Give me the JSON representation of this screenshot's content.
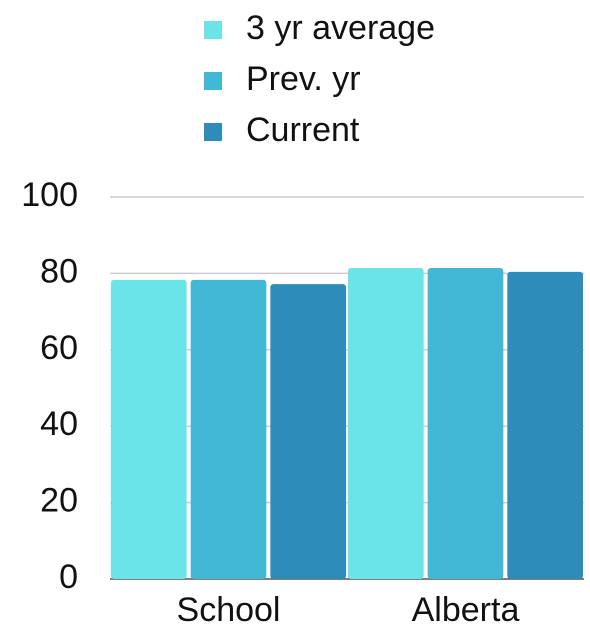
{
  "chart_data": {
    "type": "bar",
    "categories": [
      "School",
      "Alberta"
    ],
    "series": [
      {
        "name": "3 yr average",
        "color": "#6ae4e9",
        "values": [
          78.3,
          81.4
        ]
      },
      {
        "name": "Prev. yr",
        "color": "#42b8d6",
        "values": [
          78.3,
          81.4
        ]
      },
      {
        "name": "Current",
        "color": "#2e8cbb",
        "values": [
          77.2,
          80.4
        ]
      }
    ],
    "ylim": [
      0,
      100
    ],
    "yticks": [
      0,
      20,
      40,
      60,
      80,
      100
    ],
    "grid": true,
    "legend": "top"
  }
}
